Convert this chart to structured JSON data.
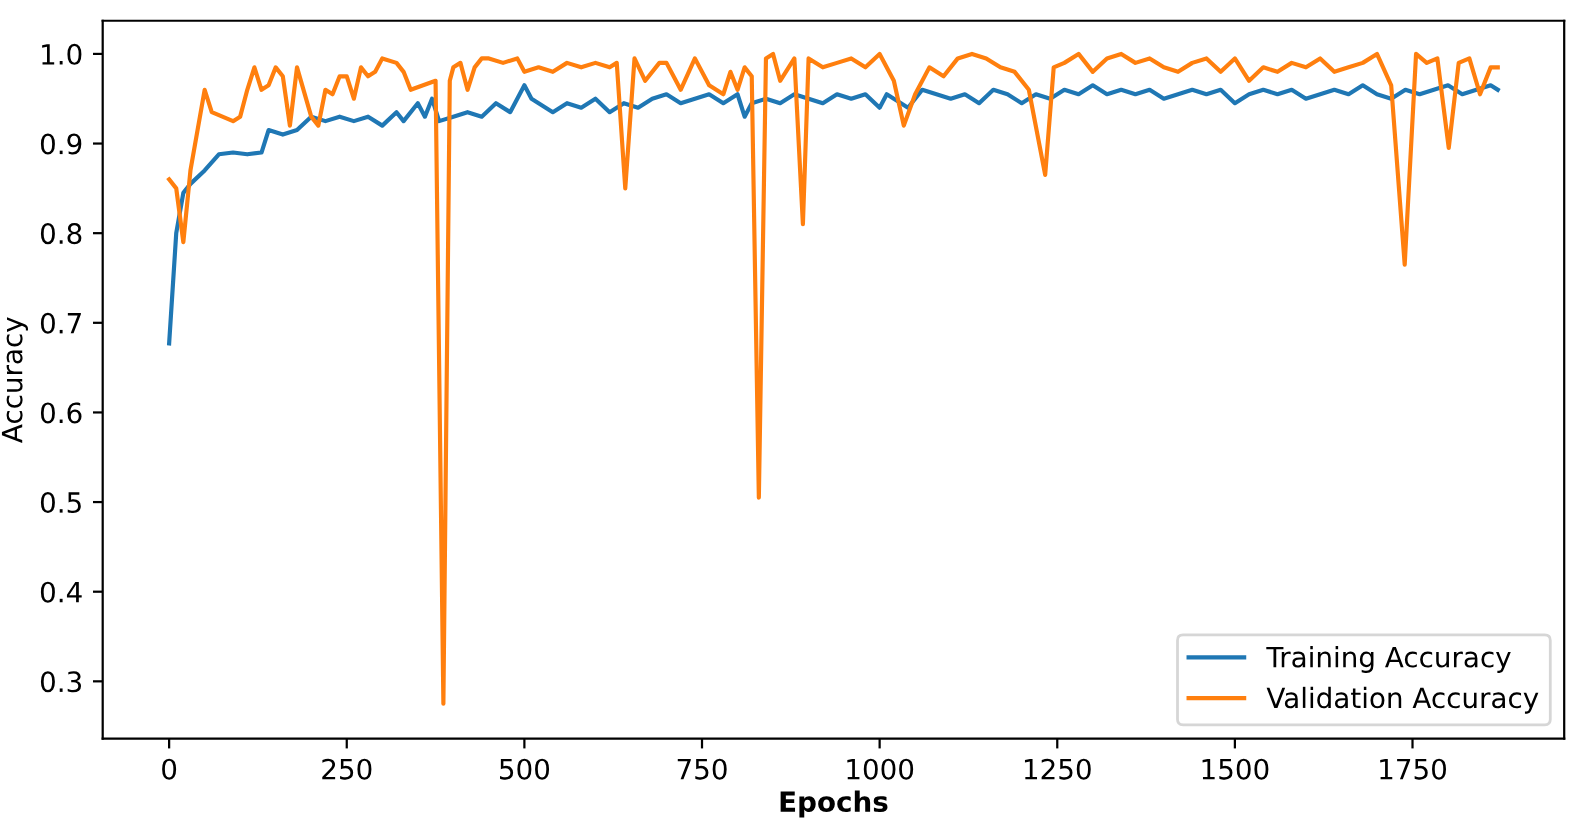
{
  "chart_data": {
    "type": "line",
    "xlabel": "Epochs",
    "ylabel": "Accuracy",
    "xlim": [
      -93.5,
      1963.5
    ],
    "ylim": [
      0.236,
      1.037
    ],
    "xticks": [
      0,
      250,
      500,
      750,
      1000,
      1250,
      1500,
      1750
    ],
    "yticks": [
      0.3,
      0.4,
      0.5,
      0.6,
      0.7,
      0.8,
      0.9,
      {
        "value": 1.0,
        "label": "1.0"
      }
    ],
    "grid": false,
    "legend": "bottom right",
    "marker": "none",
    "line_style": "solid",
    "series": [
      {
        "name": "Training Accuracy",
        "color": "#1f77b4",
        "x": [
          0,
          10,
          20,
          30,
          50,
          70,
          90,
          110,
          130,
          140,
          160,
          180,
          200,
          220,
          240,
          260,
          280,
          300,
          320,
          330,
          350,
          360,
          370,
          380,
          400,
          420,
          440,
          460,
          480,
          500,
          510,
          520,
          540,
          560,
          580,
          600,
          620,
          640,
          660,
          680,
          700,
          720,
          740,
          760,
          780,
          800,
          810,
          820,
          840,
          860,
          880,
          900,
          920,
          940,
          960,
          980,
          1000,
          1010,
          1020,
          1040,
          1060,
          1080,
          1100,
          1120,
          1140,
          1160,
          1180,
          1200,
          1220,
          1240,
          1260,
          1280,
          1300,
          1320,
          1340,
          1360,
          1380,
          1400,
          1420,
          1440,
          1460,
          1480,
          1500,
          1520,
          1540,
          1560,
          1580,
          1600,
          1620,
          1640,
          1660,
          1680,
          1700,
          1720,
          1740,
          1760,
          1780,
          1800,
          1820,
          1840,
          1860,
          1870
        ],
        "values": [
          0.677,
          0.8,
          0.845,
          0.855,
          0.87,
          0.888,
          0.89,
          0.888,
          0.89,
          0.915,
          0.91,
          0.915,
          0.93,
          0.925,
          0.93,
          0.925,
          0.93,
          0.92,
          0.935,
          0.925,
          0.945,
          0.93,
          0.95,
          0.925,
          0.93,
          0.935,
          0.93,
          0.945,
          0.935,
          0.965,
          0.95,
          0.945,
          0.935,
          0.945,
          0.94,
          0.95,
          0.935,
          0.945,
          0.94,
          0.95,
          0.955,
          0.945,
          0.95,
          0.955,
          0.945,
          0.955,
          0.93,
          0.945,
          0.95,
          0.945,
          0.955,
          0.95,
          0.945,
          0.955,
          0.95,
          0.955,
          0.94,
          0.955,
          0.95,
          0.94,
          0.96,
          0.955,
          0.95,
          0.955,
          0.945,
          0.96,
          0.955,
          0.945,
          0.955,
          0.95,
          0.96,
          0.955,
          0.965,
          0.955,
          0.96,
          0.955,
          0.96,
          0.95,
          0.955,
          0.96,
          0.955,
          0.96,
          0.945,
          0.955,
          0.96,
          0.955,
          0.96,
          0.95,
          0.955,
          0.96,
          0.955,
          0.965,
          0.955,
          0.95,
          0.96,
          0.955,
          0.96,
          0.965,
          0.955,
          0.96,
          0.965,
          0.96
        ]
      },
      {
        "name": "Validation Accuracy",
        "color": "#ff7f0e",
        "x": [
          0,
          10,
          20,
          30,
          50,
          60,
          90,
          100,
          110,
          120,
          130,
          140,
          150,
          160,
          170,
          180,
          200,
          210,
          220,
          230,
          240,
          250,
          260,
          270,
          280,
          290,
          300,
          320,
          330,
          340,
          375,
          386,
          395,
          400,
          410,
          420,
          430,
          440,
          450,
          470,
          490,
          500,
          520,
          540,
          560,
          580,
          600,
          620,
          630,
          642,
          655,
          670,
          690,
          700,
          720,
          740,
          760,
          780,
          790,
          800,
          810,
          820,
          830,
          840,
          850,
          860,
          880,
          892,
          900,
          920,
          940,
          960,
          980,
          1000,
          1020,
          1034,
          1050,
          1070,
          1090,
          1110,
          1130,
          1150,
          1170,
          1190,
          1210,
          1233,
          1245,
          1260,
          1280,
          1300,
          1320,
          1340,
          1360,
          1380,
          1400,
          1420,
          1440,
          1460,
          1480,
          1500,
          1520,
          1540,
          1560,
          1580,
          1600,
          1620,
          1640,
          1660,
          1680,
          1700,
          1720,
          1739,
          1755,
          1770,
          1785,
          1801,
          1815,
          1830,
          1845,
          1860,
          1870
        ],
        "values": [
          0.86,
          0.85,
          0.79,
          0.87,
          0.96,
          0.935,
          0.925,
          0.93,
          0.96,
          0.985,
          0.96,
          0.965,
          0.985,
          0.975,
          0.92,
          0.985,
          0.93,
          0.92,
          0.96,
          0.955,
          0.975,
          0.975,
          0.95,
          0.985,
          0.975,
          0.98,
          0.995,
          0.99,
          0.98,
          0.96,
          0.97,
          0.275,
          0.97,
          0.985,
          0.99,
          0.96,
          0.985,
          0.995,
          0.995,
          0.99,
          0.995,
          0.98,
          0.985,
          0.98,
          0.99,
          0.985,
          0.99,
          0.985,
          0.99,
          0.85,
          0.995,
          0.97,
          0.99,
          0.99,
          0.96,
          0.995,
          0.965,
          0.955,
          0.98,
          0.96,
          0.985,
          0.975,
          0.505,
          0.995,
          1.0,
          0.97,
          0.995,
          0.81,
          0.995,
          0.985,
          0.99,
          0.995,
          0.985,
          1.0,
          0.97,
          0.92,
          0.955,
          0.985,
          0.975,
          0.995,
          1.0,
          0.995,
          0.985,
          0.98,
          0.96,
          0.865,
          0.985,
          0.99,
          1.0,
          0.98,
          0.995,
          1.0,
          0.99,
          0.995,
          0.985,
          0.98,
          0.99,
          0.995,
          0.98,
          0.995,
          0.97,
          0.985,
          0.98,
          0.99,
          0.985,
          0.995,
          0.98,
          0.985,
          0.99,
          1.0,
          0.965,
          0.765,
          1.0,
          0.99,
          0.995,
          0.895,
          0.99,
          0.995,
          0.955,
          0.985,
          0.985
        ]
      }
    ]
  }
}
